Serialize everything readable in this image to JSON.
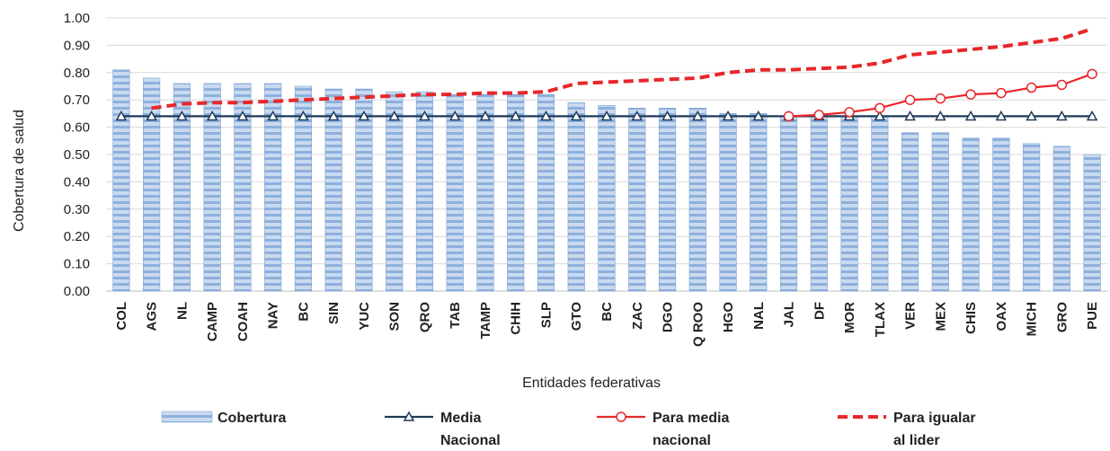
{
  "chart_data": {
    "type": "bar",
    "title": "",
    "xlabel": "Entidades federativas",
    "ylabel": "Cobertura de salud",
    "ylim": [
      0,
      1.0
    ],
    "yticks": [
      "0.00",
      "0.10",
      "0.20",
      "0.30",
      "0.40",
      "0.50",
      "0.60",
      "0.70",
      "0.80",
      "0.90",
      "1.00"
    ],
    "grid": true,
    "legend_position": "bottom",
    "categories": [
      "COL",
      "AGS",
      "NL",
      "CAMP",
      "COAH",
      "NAY",
      "BC",
      "SIN",
      "YUC",
      "SON",
      "QRO",
      "TAB",
      "TAMP",
      "CHIH",
      "SLP",
      "GTO",
      "BC",
      "ZAC",
      "DGO",
      "Q ROO",
      "HGO",
      "NAL",
      "JAL",
      "DF",
      "MOR",
      "TLAX",
      "VER",
      "MEX",
      "CHIS",
      "OAX",
      "MICH",
      "GRO",
      "PUE"
    ],
    "series": [
      {
        "name": "Cobertura",
        "kind": "bar",
        "color": "#9dbbe0",
        "values": [
          0.81,
          0.78,
          0.76,
          0.76,
          0.76,
          0.76,
          0.75,
          0.74,
          0.74,
          0.73,
          0.73,
          0.72,
          0.72,
          0.72,
          0.72,
          0.69,
          0.68,
          0.67,
          0.67,
          0.67,
          0.65,
          0.65,
          0.64,
          0.64,
          0.64,
          0.64,
          0.58,
          0.58,
          0.56,
          0.56,
          0.54,
          0.53,
          0.5
        ]
      },
      {
        "name": "Media\nNacional",
        "kind": "line",
        "color": "#1f3a5a",
        "marker": "triangle",
        "values": [
          0.64,
          0.64,
          0.64,
          0.64,
          0.64,
          0.64,
          0.64,
          0.64,
          0.64,
          0.64,
          0.64,
          0.64,
          0.64,
          0.64,
          0.64,
          0.64,
          0.64,
          0.64,
          0.64,
          0.64,
          0.64,
          0.64,
          0.64,
          0.64,
          0.64,
          0.64,
          0.64,
          0.64,
          0.64,
          0.64,
          0.64,
          0.64,
          0.64
        ]
      },
      {
        "name": "Para media\nnacional",
        "kind": "line",
        "color": "#e8272a",
        "marker": "circle",
        "values": [
          null,
          null,
          null,
          null,
          null,
          null,
          null,
          null,
          null,
          null,
          null,
          null,
          null,
          null,
          null,
          null,
          null,
          null,
          null,
          null,
          null,
          null,
          0.64,
          0.645,
          0.655,
          0.67,
          0.7,
          0.705,
          0.72,
          0.725,
          0.745,
          0.755,
          0.795
        ]
      },
      {
        "name": "Para igualar\nal lider",
        "kind": "line",
        "color": "#e8272a",
        "dashed": true,
        "values": [
          null,
          0.67,
          0.685,
          0.69,
          0.69,
          0.695,
          0.7,
          0.705,
          0.71,
          0.715,
          0.72,
          0.72,
          0.725,
          0.725,
          0.73,
          0.76,
          0.765,
          0.77,
          0.775,
          0.78,
          0.8,
          0.81,
          0.81,
          0.815,
          0.82,
          0.835,
          0.865,
          0.875,
          0.885,
          0.895,
          0.91,
          0.925,
          0.96
        ]
      }
    ]
  }
}
